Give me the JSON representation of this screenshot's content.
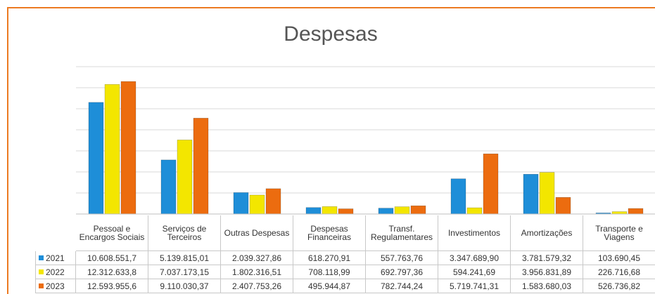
{
  "chart_data": {
    "type": "bar",
    "title": "Despesas",
    "categories": [
      "Pessoal e Encargos Sociais",
      "Serviços de Terceiros",
      "Outras Despesas",
      "Despesas Financeiras",
      "Transf. Regulamentares",
      "Investimentos",
      "Amortizações",
      "Transporte e Viagens"
    ],
    "series": [
      {
        "name": "2021",
        "color": "#1e8ed8",
        "values": [
          10608551.7,
          5139815.01,
          2039327.86,
          618270.91,
          557763.76,
          3347689.9,
          3781579.32,
          103690.45
        ],
        "value_labels": [
          "10.608.551,7",
          "5.139.815,01",
          "2.039.327,86",
          "618.270,91",
          "557.763,76",
          "3.347.689,90",
          "3.781.579,32",
          "103.690,45"
        ]
      },
      {
        "name": "2022",
        "color": "#f3e600",
        "values": [
          12312633.8,
          7037173.15,
          1802316.51,
          708118.99,
          692797.36,
          594241.69,
          3956831.89,
          226716.68
        ],
        "value_labels": [
          "12.312.633,8",
          "7.037.173,15",
          "1.802.316,51",
          "708.118,99",
          "692.797,36",
          "594.241,69",
          "3.956.831,89",
          "226.716,68"
        ]
      },
      {
        "name": "2023",
        "color": "#ec6c0f",
        "values": [
          12593955.6,
          9110030.37,
          2407753.26,
          495944.87,
          782744.24,
          5719741.31,
          1583680.03,
          526736.82
        ],
        "value_labels": [
          "12.593.955,6",
          "9.110.030,37",
          "2.407.753,26",
          "495.944,87",
          "782.744,24",
          "5.719.741,31",
          "1.583.680,03",
          "526.736,82"
        ]
      }
    ],
    "ylim": [
      0,
      14000000
    ],
    "yticks": [
      0,
      2000000,
      4000000,
      6000000,
      8000000,
      10000000,
      12000000,
      14000000
    ],
    "grid": true
  }
}
